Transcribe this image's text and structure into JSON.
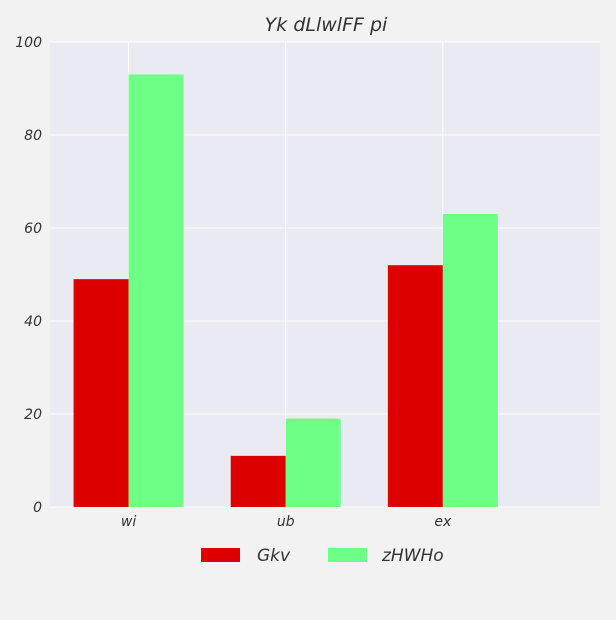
{
  "chart_data": {
    "type": "bar",
    "title": "Yk dLlwlFF pi",
    "xlabel": "",
    "ylabel": "",
    "categories": [
      "wi",
      "ub",
      "ex"
    ],
    "series": [
      {
        "name": "Gkv",
        "values": [
          49,
          11,
          52
        ],
        "color": "#dd0000"
      },
      {
        "name": "zHWHo",
        "values": [
          93,
          19,
          63
        ],
        "color": "#6eff86"
      }
    ],
    "ylim": [
      0,
      100
    ],
    "yticks": [
      0,
      20,
      40,
      60,
      80,
      100
    ],
    "grid": true,
    "legend_position": "bottom-center",
    "colors": {
      "background": "#f2f2f2",
      "plot_background": "#eaeaf2",
      "grid": "#ffffff",
      "text": "#333333"
    }
  }
}
